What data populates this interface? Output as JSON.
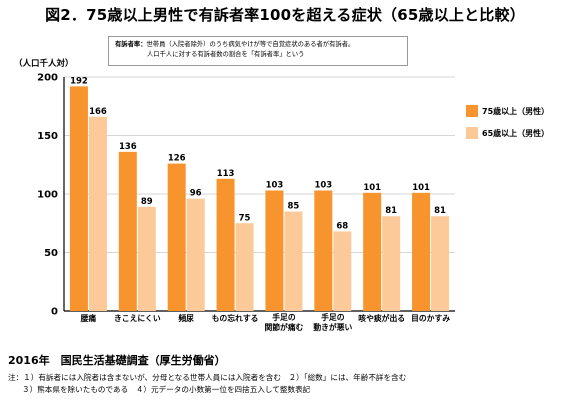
{
  "title": "図2．75歳以上男性で有訴者率100を超える症状（65歳以上と比較）",
  "definition": {
    "label": "有訴者率：",
    "line1": "世帯員（入院者除外）のうち病気やけが等で自覚症状のある者が有訴者。",
    "line2": "人口千人に対する有訴者数の割合を「有訴者率」という"
  },
  "chart_data": {
    "type": "bar",
    "unit_label": "（人口千人対）",
    "ylim": [
      0,
      200
    ],
    "yticks": [
      0,
      50,
      100,
      150,
      200
    ],
    "categories": [
      [
        "腰痛"
      ],
      [
        "きこえにくい"
      ],
      [
        "頻尿"
      ],
      [
        "もの忘れする"
      ],
      [
        "手足の",
        "関節が痛む"
      ],
      [
        "手足の",
        "動きが悪い"
      ],
      [
        "咳や痰が出る"
      ],
      [
        "目のかすみ"
      ]
    ],
    "series": [
      {
        "name": "75歳以上（男性）",
        "color": "#f7942e",
        "values": [
          192,
          136,
          126,
          113,
          103,
          103,
          101,
          101
        ]
      },
      {
        "name": "65歳以上（男性）",
        "color": "#fcc999",
        "values": [
          166,
          89,
          96,
          75,
          85,
          68,
          81,
          81
        ]
      }
    ]
  },
  "source": "2016年　国民生活基礎調査（厚生労働省）",
  "notes": {
    "line1": "注：１）有訴者には入院者は含まないが、分母となる世帯人員には入院者を含む　２）「総数」には、年齢不詳を含む",
    "line2": "３）熊本県を除いたものである　４）元データの小数第一位を四捨五入して整数表記"
  }
}
